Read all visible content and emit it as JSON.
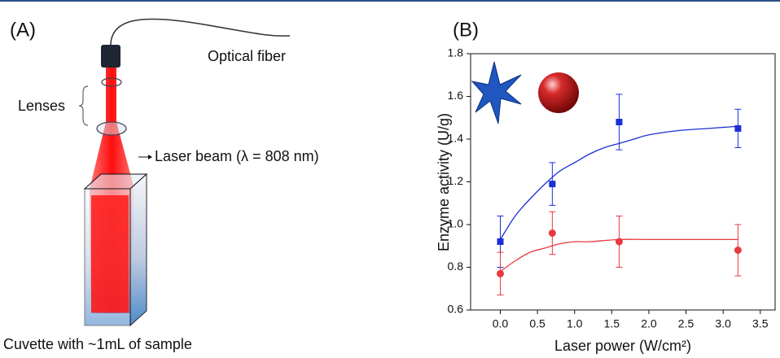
{
  "panel_a": {
    "label": "(A)",
    "fiber": "Optical fiber",
    "lenses": "Lenses",
    "beam": "Laser beam (λ = 808 nm)",
    "cuvette": "Cuvette with ~1mL of sample"
  },
  "chart_data": {
    "type": "scatter",
    "panel_label": "(B)",
    "xlabel": "Laser power (W/cm²)",
    "ylabel": "Enzyme activity (U/g)",
    "xlim": [
      -0.4,
      3.7
    ],
    "xticks": [
      {
        "value": 0,
        "label": "0.0"
      },
      0.5,
      {
        "value": 1,
        "label": "1.0"
      },
      1.5,
      {
        "value": 2,
        "label": "2.0"
      },
      2.5,
      {
        "value": 3,
        "label": "3.0"
      },
      3.5
    ],
    "ylim": [
      0.6,
      1.8
    ],
    "yticks": [
      0.6,
      0.8,
      {
        "value": 1,
        "label": "1.0"
      },
      1.2,
      1.4,
      1.6,
      1.8
    ],
    "x": [
      0,
      0.7,
      1.6,
      3.2
    ],
    "series": [
      {
        "color": "#1a2fd6",
        "marker": "square",
        "values": [
          0.92,
          1.19,
          1.48,
          1.45
        ],
        "errors": [
          0.12,
          0.1,
          0.13,
          0.09
        ],
        "fit": {
          "x": [
            0,
            0.2,
            0.4,
            0.6,
            0.8,
            1.0,
            1.2,
            1.4,
            1.6,
            1.8,
            2.0,
            2.4,
            2.8,
            3.2
          ],
          "values": [
            0.93,
            1.04,
            1.12,
            1.19,
            1.25,
            1.29,
            1.33,
            1.36,
            1.38,
            1.4,
            1.42,
            1.44,
            1.45,
            1.46
          ]
        }
      },
      {
        "color": "#e8393f",
        "marker": "circle",
        "values": [
          0.77,
          0.96,
          0.92,
          0.88
        ],
        "errors": [
          0.1,
          0.1,
          0.12,
          0.12
        ],
        "fit": {
          "x": [
            0,
            0.2,
            0.4,
            0.6,
            0.8,
            1.0,
            1.2,
            1.6,
            2.0,
            2.4,
            2.8,
            3.2
          ],
          "values": [
            0.78,
            0.83,
            0.87,
            0.89,
            0.91,
            0.92,
            0.92,
            0.93,
            0.93,
            0.93,
            0.93,
            0.93
          ]
        }
      }
    ]
  }
}
